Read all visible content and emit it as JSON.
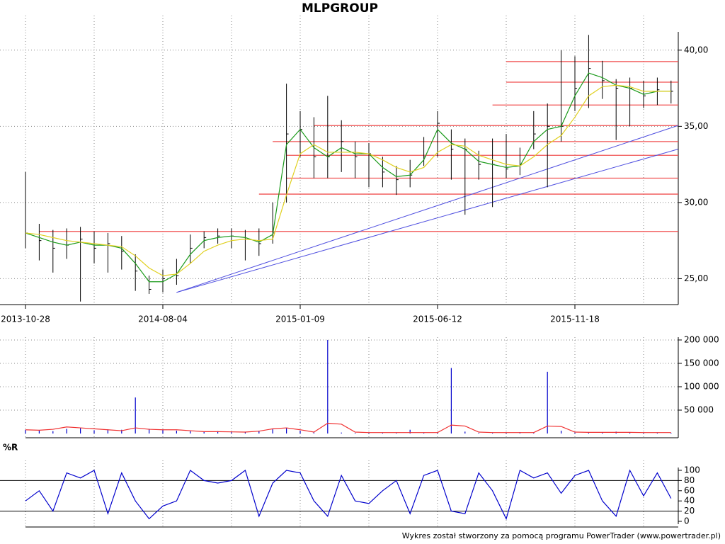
{
  "chart_data": [
    {
      "type": "range",
      "title": "MLPGROUP",
      "categories": [
        "2013-10-28",
        null,
        null,
        null,
        null,
        null,
        null,
        null,
        null,
        null,
        "2014-08-04",
        null,
        null,
        null,
        null,
        null,
        null,
        null,
        null,
        null,
        "2015-01-09",
        null,
        null,
        null,
        null,
        null,
        null,
        null,
        null,
        null,
        "2015-06-12",
        null,
        null,
        null,
        null,
        null,
        null,
        null,
        null,
        null,
        "2015-11-18",
        null,
        null,
        null,
        null,
        null,
        null,
        null
      ],
      "high": [
        32,
        28.6,
        28.2,
        28.3,
        28.4,
        28.1,
        28,
        27.8,
        26.6,
        25.2,
        25.6,
        26.3,
        27.9,
        28.1,
        28.3,
        28.3,
        28.2,
        28.3,
        30,
        37.8,
        36,
        35.6,
        37,
        35.4,
        34,
        33.9,
        33,
        32.4,
        32.8,
        34.3,
        36,
        34.8,
        34.2,
        33.4,
        34.2,
        34.5,
        33.6,
        36,
        36.5,
        40,
        39.6,
        41,
        39.3,
        38.1,
        38.2,
        38,
        38.2,
        38
      ],
      "low": [
        27,
        26.2,
        25.4,
        26.3,
        23.5,
        26,
        25.4,
        25.6,
        24.2,
        24,
        24.1,
        24.6,
        26,
        27,
        27.3,
        27,
        26.2,
        26.5,
        27.3,
        30,
        33,
        31.6,
        31.6,
        32,
        31.6,
        31,
        31,
        30.5,
        31,
        32.4,
        33,
        31.5,
        29.2,
        31.5,
        29.7,
        31.6,
        31.8,
        33.5,
        31,
        34,
        36,
        36.2,
        36.8,
        34.1,
        35,
        36.2,
        36.4,
        36.5
      ],
      "close": [
        28,
        27.5,
        27,
        27.2,
        27.6,
        27,
        27.3,
        26.8,
        25.5,
        24.3,
        25,
        25.2,
        27,
        27.7,
        27.8,
        27.8,
        27.6,
        27.3,
        28,
        34.5,
        34.8,
        33,
        33,
        34,
        33,
        33.2,
        32,
        31.5,
        31.8,
        33,
        35.2,
        33.5,
        33.5,
        32.5,
        32.5,
        32.2,
        32.5,
        34.5,
        35,
        35,
        37.5,
        38.8,
        38,
        37.5,
        37.5,
        37,
        37.4,
        37.3
      ],
      "color": "#000000",
      "moving_averages": [
        {
          "color": "#1a9a1a",
          "values": [
            28,
            27.7,
            27.4,
            27.2,
            27.4,
            27.2,
            27.2,
            27,
            26,
            24.8,
            24.8,
            25.3,
            26.6,
            27.5,
            27.7,
            27.8,
            27.7,
            27.4,
            27.9,
            33.8,
            34.8,
            33.6,
            33,
            33.6,
            33.2,
            33.2,
            32.3,
            31.7,
            31.8,
            32.8,
            34.8,
            33.9,
            33.5,
            32.7,
            32.5,
            32.3,
            32.4,
            34,
            34.8,
            35,
            37,
            38.5,
            38.2,
            37.7,
            37.5,
            37.1,
            37.3,
            37.3
          ]
        },
        {
          "color": "#e0d020",
          "values": [
            28,
            27.9,
            27.7,
            27.5,
            27.4,
            27.3,
            27.2,
            27.1,
            26.5,
            25.7,
            25.2,
            25.3,
            26,
            26.8,
            27.2,
            27.5,
            27.6,
            27.5,
            27.6,
            30.5,
            33.2,
            33.8,
            33.3,
            33.3,
            33.3,
            33.2,
            32.8,
            32.3,
            32,
            32.3,
            33.3,
            33.8,
            33.7,
            33.1,
            32.8,
            32.5,
            32.4,
            33,
            33.8,
            34.4,
            35.6,
            37,
            37.6,
            37.7,
            37.6,
            37.3,
            37.3,
            37.3
          ]
        }
      ],
      "levels": [
        {
          "value": 28.1,
          "start": 1,
          "color": "#f05050"
        },
        {
          "value": 30.55,
          "start": 17,
          "color": "#f05050"
        },
        {
          "value": 31.6,
          "start": 19,
          "color": "#f05050"
        },
        {
          "value": 33.1,
          "start": 19,
          "color": "#f05050"
        },
        {
          "value": 34,
          "start": 18,
          "color": "#f05050"
        },
        {
          "value": 35.05,
          "start": 21,
          "color": "#f05050"
        },
        {
          "value": 36.4,
          "start": 34,
          "color": "#f05050"
        },
        {
          "value": 37.9,
          "start": 35,
          "color": "#f05050"
        },
        {
          "value": 39.25,
          "start": 35,
          "color": "#f05050"
        }
      ],
      "trendlines": [
        {
          "x": [
            11,
            47.5
          ],
          "y": [
            24.1,
            35.05
          ],
          "color": "#5050e0"
        },
        {
          "x": [
            11,
            47.5
          ],
          "y": [
            24.1,
            33.5
          ],
          "color": "#5050e0"
        }
      ],
      "ylim": [
        23.3,
        41.2
      ],
      "yticks": [
        {
          "value": 25,
          "label": "25,00"
        },
        {
          "value": 30,
          "label": "30,00"
        },
        {
          "value": 35,
          "label": "35,00"
        },
        {
          "value": 40,
          "label": "40,00"
        }
      ],
      "grid": true
    },
    {
      "type": "bar",
      "color": "#0000cc",
      "values": [
        8000,
        6000,
        5000,
        10000,
        12000,
        7000,
        9000,
        8000,
        77000,
        10000,
        9000,
        6000,
        5000,
        4000,
        5000,
        4000,
        3000,
        6000,
        9000,
        12000,
        6000,
        3000,
        200000,
        2000,
        1500,
        1500,
        1500,
        2000,
        8000,
        1500,
        1500,
        140000,
        4000,
        1500,
        2000,
        1500,
        3000,
        2500,
        132000,
        6000,
        2000,
        3000,
        2000,
        4000,
        2000,
        1500,
        1500,
        1500
      ],
      "average": {
        "color": "#f03030",
        "values": [
          8000,
          7000,
          9000,
          14000,
          12000,
          10000,
          8000,
          6000,
          12000,
          9000,
          8000,
          8000,
          6000,
          4000,
          4000,
          3500,
          3000,
          5000,
          10000,
          12000,
          8000,
          3000,
          22000,
          20000,
          3000,
          2000,
          2000,
          2000,
          2000,
          2000,
          2000,
          18000,
          16000,
          3000,
          2000,
          2000,
          2000,
          2000,
          16000,
          15000,
          3000,
          2500,
          2500,
          2500,
          2500,
          2000,
          2000,
          2000
        ]
      },
      "ylim": [
        0,
        206000
      ],
      "yticks": [
        {
          "value": 50000,
          "label": "50 000"
        },
        {
          "value": 100000,
          "label": "100 000"
        },
        {
          "value": 150000,
          "label": "150 000"
        },
        {
          "value": 200000,
          "label": "200 000"
        }
      ],
      "grid": true
    },
    {
      "type": "line",
      "title": "%R",
      "color": "#0000cc",
      "values": [
        40,
        60,
        20,
        95,
        85,
        100,
        15,
        95,
        40,
        5,
        30,
        40,
        100,
        80,
        75,
        80,
        100,
        10,
        75,
        100,
        95,
        40,
        10,
        90,
        40,
        35,
        60,
        80,
        15,
        90,
        100,
        20,
        15,
        95,
        60,
        5,
        100,
        85,
        95,
        55,
        90,
        100,
        40,
        10,
        100,
        50,
        95,
        45
      ],
      "levels": [
        20,
        80
      ],
      "ylim": [
        0,
        100
      ],
      "yticks": [
        0,
        20,
        40,
        60,
        80,
        100
      ],
      "grid": true
    }
  ],
  "footer": "Wykres został stworzony za pomocą programu PowerTrader (www.powertrader.pl)"
}
